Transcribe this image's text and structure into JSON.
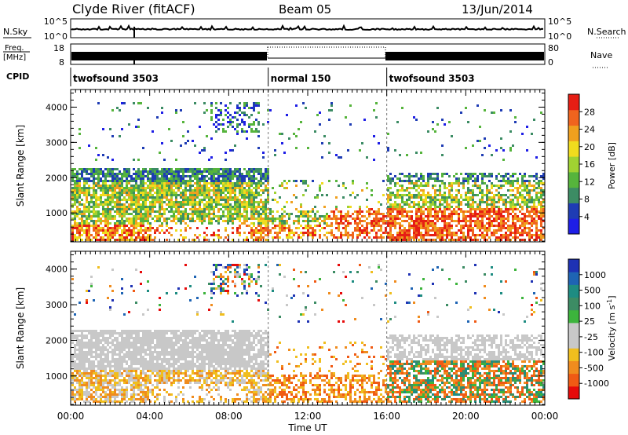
{
  "header": {
    "title": "Clyde River (fitACF)",
    "beam": "Beam 05",
    "date": "13/Jun/2014"
  },
  "left_labels": {
    "nsky": "N.Sky",
    "freq_line1": "Freq.",
    "freq_line2": "[MHz]",
    "cpid": "CPID"
  },
  "right_labels": {
    "nsearch": "N.Search",
    "nave": "Nave"
  },
  "noise_panel": {
    "left_ticks": [
      "10^5",
      "10^0"
    ],
    "right_ticks": [
      "10^5",
      "10^0"
    ]
  },
  "freq_panel": {
    "left_ticks": [
      "18",
      "8"
    ],
    "right_ticks": [
      "80",
      "0"
    ]
  },
  "cpid_segments": [
    {
      "label": "twofsound 3503",
      "start_hour": 0,
      "end_hour": 10
    },
    {
      "label": "normal 150",
      "start_hour": 10,
      "end_hour": 16
    },
    {
      "label": "twofsound 3503",
      "start_hour": 16,
      "end_hour": 24
    }
  ],
  "colors": {
    "power_scale": [
      "#1e1ee6",
      "#1e3cb4",
      "#3c8c64",
      "#56b43c",
      "#a0d232",
      "#f0dc1e",
      "#f0a01e",
      "#f0641e",
      "#e61e14"
    ],
    "velocity_scale": [
      "#e60a0a",
      "#f05a14",
      "#f08c1e",
      "#f0be1e",
      "#c8c8c8",
      "#c8c8c8",
      "#3cb43c",
      "#3c8c64",
      "#1e8c82",
      "#1e64b4",
      "#1e32b4"
    ]
  },
  "chart_data": [
    {
      "type": "heatmap",
      "panel": "power",
      "xlabel": "",
      "ylabel": "Slant Range [km]",
      "y_ticks": [
        1000,
        2000,
        3000,
        4000
      ],
      "ylim": [
        180,
        4500
      ],
      "x_range_hours": [
        0,
        24
      ],
      "colorbar": {
        "label": "Power [dB]",
        "ticks": [
          "4",
          "8",
          "12",
          "16",
          "20",
          "24",
          "28"
        ],
        "range": [
          0,
          30
        ]
      }
    },
    {
      "type": "heatmap",
      "panel": "velocity",
      "xlabel": "Time UT",
      "ylabel": "Slant Range [km]",
      "y_ticks": [
        1000,
        2000,
        3000,
        4000
      ],
      "ylim": [
        180,
        4500
      ],
      "x_range_hours": [
        0,
        24
      ],
      "x_tick_labels": [
        "00:00",
        "04:00",
        "08:00",
        "12:00",
        "16:00",
        "20:00",
        "00:00"
      ],
      "colorbar": {
        "label": "Velocity [m s^-1]",
        "ticks": [
          "1000",
          "500",
          "100",
          "25",
          "-25",
          "-100",
          "-500",
          "-1000"
        ]
      }
    }
  ]
}
